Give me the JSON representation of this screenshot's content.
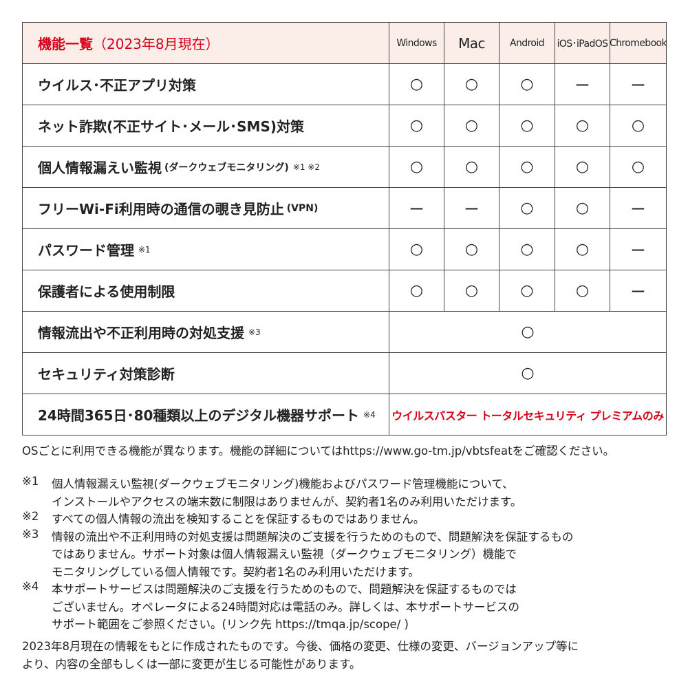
{
  "table": {
    "header": {
      "title": "機能一覧",
      "title_note": "（2023年8月現在）",
      "columns": [
        "Windows",
        "Mac",
        "Android",
        "iOS･iPadOS",
        "Chromebook"
      ]
    },
    "rows": [
      {
        "label": "ウイルス･不正アプリ対策",
        "cells": [
          "○",
          "○",
          "○",
          "ー",
          "ー"
        ]
      },
      {
        "label": "ネット詐欺(不正サイト･メール･SMS)対策",
        "cells": [
          "○",
          "○",
          "○",
          "○",
          "○"
        ]
      },
      {
        "label": "個人情報漏えい監視",
        "sublabel": "(ダークウェブモニタリング)",
        "note": "※1 ※2",
        "cells": [
          "○",
          "○",
          "○",
          "○",
          "○"
        ]
      },
      {
        "label": "フリーWi-Fi利用時の通信の覗き見防止",
        "sublabel": "(VPN)",
        "cells": [
          "ー",
          "ー",
          "○",
          "○",
          "ー"
        ]
      },
      {
        "label": "パスワード管理",
        "note": "※1",
        "cells": [
          "○",
          "○",
          "○",
          "○",
          "ー"
        ]
      },
      {
        "label": "保護者による使用制限",
        "cells": [
          "○",
          "○",
          "○",
          "○",
          "ー"
        ]
      },
      {
        "label": "情報流出や不正利用時の対処支援",
        "note": "※3",
        "cells": [
          "○"
        ]
      },
      {
        "label": "セキュリティ対策診断",
        "cells": [
          "○"
        ]
      },
      {
        "label": "24時間365日･80種類以上のデジタル機器サポート",
        "note": "※4",
        "cells": [
          "ウイルスバスター トータルセキュリティ プレミアムのみ"
        ],
        "emphasis": true
      }
    ]
  },
  "notes": {
    "intro": "OSごとに利用できる機能が異なります。機能の詳細についてはhttps://www.go-tm.jp/vbtsfeatをご確認ください。",
    "items": [
      {
        "mark": "※1",
        "lines": [
          "個人情報漏えい監視(ダークウェブモニタリング)機能およびパスワード管理機能について、",
          "インストールやアクセスの端末数に制限はありませんが、契約者1名のみ利用いただけます。"
        ]
      },
      {
        "mark": "※2",
        "lines": [
          "すべての個人情報の流出を検知することを保証するものではありません。"
        ]
      },
      {
        "mark": "※3",
        "lines": [
          "情報の流出や不正利用時の対処支援は問題解決のご支援を行うためのもので、問題解決を保証するもの",
          "ではありません。サポート対象は個人情報漏えい監視（ダークウェブモニタリング）機能で",
          "モニタリングしている個人情報です。契約者1名のみ利用いただけます。"
        ]
      },
      {
        "mark": "※4",
        "lines": [
          "本サポートサービスは問題解決のご支援を行うためのもので、問題解決を保証するものでは",
          "ございません。オペレータによる24時間対応は電話のみ。詳しくは、本サポートサービスの",
          "サポート範囲をご参照ください。(リンク先 https://tmqa.jp/scope/ )"
        ]
      }
    ],
    "closing": [
      "2023年8月現在の情報をもとに作成されたものです。今後、価格の変更、仕様の変更、バージョンアップ等に",
      "より、内容の全部もしくは一部に変更が生じる可能性があります。"
    ]
  }
}
